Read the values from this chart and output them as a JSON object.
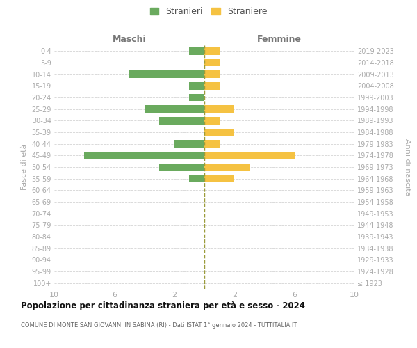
{
  "age_groups": [
    "100+",
    "95-99",
    "90-94",
    "85-89",
    "80-84",
    "75-79",
    "70-74",
    "65-69",
    "60-64",
    "55-59",
    "50-54",
    "45-49",
    "40-44",
    "35-39",
    "30-34",
    "25-29",
    "20-24",
    "15-19",
    "10-14",
    "5-9",
    "0-4"
  ],
  "birth_years": [
    "≤ 1923",
    "1924-1928",
    "1929-1933",
    "1934-1938",
    "1939-1943",
    "1944-1948",
    "1949-1953",
    "1954-1958",
    "1959-1963",
    "1964-1968",
    "1969-1973",
    "1974-1978",
    "1979-1983",
    "1984-1988",
    "1989-1993",
    "1994-1998",
    "1999-2003",
    "2004-2008",
    "2009-2013",
    "2014-2018",
    "2019-2023"
  ],
  "maschi": [
    0,
    0,
    0,
    0,
    0,
    0,
    0,
    0,
    0,
    1,
    3,
    8,
    2,
    0,
    3,
    4,
    1,
    1,
    5,
    0,
    1
  ],
  "femmine": [
    0,
    0,
    0,
    0,
    0,
    0,
    0,
    0,
    0,
    2,
    3,
    6,
    1,
    2,
    1,
    2,
    0,
    1,
    1,
    1,
    1
  ],
  "color_maschi": "#6aaa5e",
  "color_femmine": "#f5c242",
  "title": "Popolazione per cittadinanza straniera per età e sesso - 2024",
  "subtitle": "COMUNE DI MONTE SAN GIOVANNI IN SABINA (RI) - Dati ISTAT 1° gennaio 2024 - TUTTITALIA.IT",
  "label_maschi": "Maschi",
  "label_femmine": "Femmine",
  "ylabel_left": "Fasce di età",
  "ylabel_right": "Anni di nascita",
  "legend_maschi": "Stranieri",
  "legend_femmine": "Straniere",
  "xlim": 10,
  "xtick_vals": [
    -10,
    -6,
    -2,
    2,
    6,
    10
  ],
  "background_color": "#ffffff",
  "grid_color": "#d4d4d4",
  "center_line_color": "#9b9b3a"
}
